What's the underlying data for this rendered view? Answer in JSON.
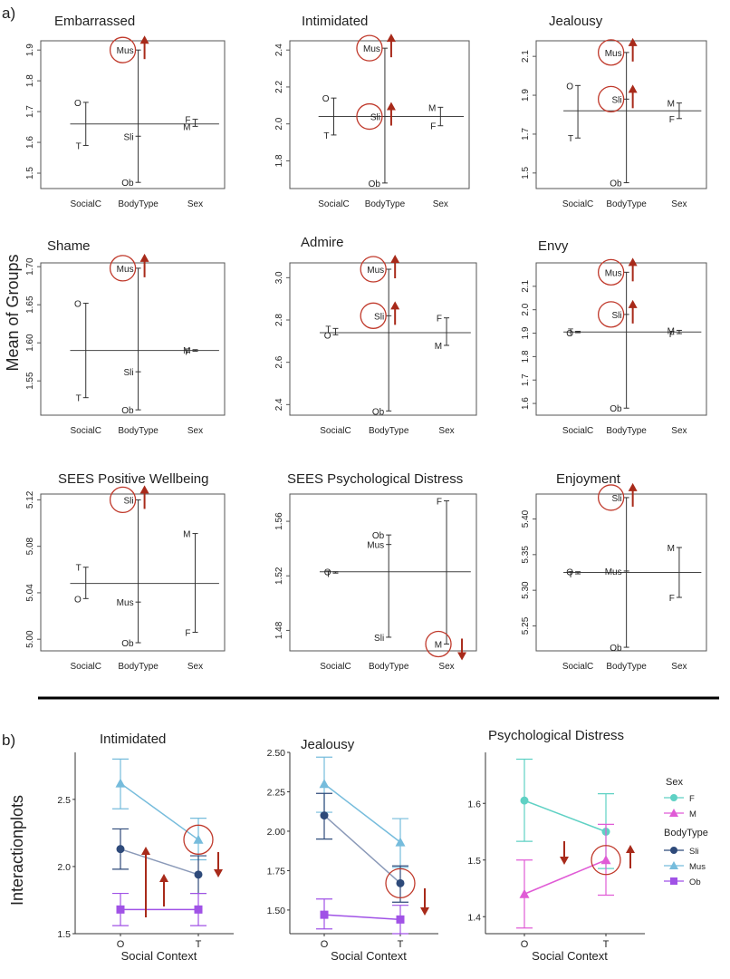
{
  "labels": {
    "part_a": "a)",
    "part_b": "b)",
    "y_label_a": "Mean of Groups",
    "y_label_b": "Interactionplots"
  },
  "colors": {
    "arrow": "#a82a1a",
    "circle": "#c0392b",
    "line": "#333333",
    "F": "#5fd1c4",
    "M": "#e05bd6",
    "Sli": "#2e4a7a",
    "Mus": "#76bcdc",
    "Ob": "#a052e6",
    "Sli_line": "#8a99b8"
  },
  "chart_data": [
    {
      "type": "design-means",
      "title": "Embarrassed",
      "ylim": [
        1.45,
        1.93
      ],
      "yticks": [
        1.5,
        1.6,
        1.7,
        1.8,
        1.9
      ],
      "ytick_labels": [
        "1.5",
        "1.6",
        "1.7",
        "1.8",
        "1.9"
      ],
      "grand_mean": 1.66,
      "xfactors": [
        "SocialC",
        "BodyType",
        "Sex"
      ],
      "groups": [
        {
          "factor": "SocialC",
          "levels": [
            {
              "label": "O",
              "value": 1.73
            },
            {
              "label": "T",
              "value": 1.59
            }
          ]
        },
        {
          "factor": "BodyType",
          "levels": [
            {
              "label": "Mus",
              "value": 1.9
            },
            {
              "label": "Sli",
              "value": 1.62
            },
            {
              "label": "Ob",
              "value": 1.47
            }
          ]
        },
        {
          "factor": "Sex",
          "levels": [
            {
              "label": "F",
              "value": 1.675
            },
            {
              "label": "M",
              "value": 1.652
            }
          ]
        }
      ],
      "highlights": [
        {
          "label": "Mus",
          "arrow": "up"
        }
      ]
    },
    {
      "type": "design-means",
      "title": "Intimidated",
      "ylim": [
        1.65,
        2.45
      ],
      "yticks": [
        1.8,
        2.0,
        2.2,
        2.4
      ],
      "ytick_labels": [
        "1.8",
        "2.0",
        "2.2",
        "2.4"
      ],
      "grand_mean": 2.04,
      "xfactors": [
        "SocialC",
        "BodyType",
        "Sex"
      ],
      "groups": [
        {
          "factor": "SocialC",
          "levels": [
            {
              "label": "O",
              "value": 2.14
            },
            {
              "label": "T",
              "value": 1.94
            }
          ]
        },
        {
          "factor": "BodyType",
          "levels": [
            {
              "label": "Mus",
              "value": 2.41
            },
            {
              "label": "Sli",
              "value": 2.04
            },
            {
              "label": "Ob",
              "value": 1.68
            }
          ]
        },
        {
          "factor": "Sex",
          "levels": [
            {
              "label": "M",
              "value": 2.09
            },
            {
              "label": "F",
              "value": 1.99
            }
          ]
        }
      ],
      "highlights": [
        {
          "label": "Mus",
          "arrow": "up"
        },
        {
          "label": "Sli",
          "arrow": "up"
        }
      ]
    },
    {
      "type": "design-means",
      "title": "Jealousy",
      "ylim": [
        1.42,
        2.18
      ],
      "yticks": [
        1.5,
        1.7,
        1.9,
        2.1
      ],
      "ytick_labels": [
        "1.5",
        "1.7",
        "1.9",
        "2.1"
      ],
      "grand_mean": 1.82,
      "xfactors": [
        "SocialC",
        "BodyType",
        "Sex"
      ],
      "groups": [
        {
          "factor": "SocialC",
          "levels": [
            {
              "label": "O",
              "value": 1.95
            },
            {
              "label": "T",
              "value": 1.68
            }
          ]
        },
        {
          "factor": "BodyType",
          "levels": [
            {
              "label": "Mus",
              "value": 2.12
            },
            {
              "label": "Sli",
              "value": 1.88
            },
            {
              "label": "Ob",
              "value": 1.45
            }
          ]
        },
        {
          "factor": "Sex",
          "levels": [
            {
              "label": "M",
              "value": 1.86
            },
            {
              "label": "F",
              "value": 1.78
            }
          ]
        }
      ],
      "highlights": [
        {
          "label": "Mus",
          "arrow": "up"
        },
        {
          "label": "Sli",
          "arrow": "up"
        }
      ]
    },
    {
      "type": "design-means",
      "title": "Shame",
      "ylim": [
        1.505,
        1.705
      ],
      "yticks": [
        1.55,
        1.6,
        1.65,
        1.7
      ],
      "ytick_labels": [
        "1.55",
        "1.60",
        "1.65",
        "1.70"
      ],
      "grand_mean": 1.59,
      "xfactors": [
        "SocialC",
        "BodyType",
        "Sex"
      ],
      "groups": [
        {
          "factor": "SocialC",
          "levels": [
            {
              "label": "O",
              "value": 1.652
            },
            {
              "label": "T",
              "value": 1.528
            }
          ]
        },
        {
          "factor": "BodyType",
          "levels": [
            {
              "label": "Mus",
              "value": 1.698
            },
            {
              "label": "Sli",
              "value": 1.562
            },
            {
              "label": "Ob",
              "value": 1.512
            }
          ]
        },
        {
          "factor": "Sex",
          "levels": [
            {
              "label": "M",
              "value": 1.591
            },
            {
              "label": "F",
              "value": 1.589
            }
          ]
        }
      ],
      "highlights": [
        {
          "label": "Mus",
          "arrow": "up"
        }
      ]
    },
    {
      "type": "design-means",
      "title": "Admire",
      "ylim": [
        2.35,
        3.07
      ],
      "yticks": [
        2.4,
        2.6,
        2.8,
        3.0
      ],
      "ytick_labels": [
        "2.4",
        "2.6",
        "2.8",
        "3.0"
      ],
      "grand_mean": 2.74,
      "xfactors": [
        "SocialC",
        "BodyType",
        "Sex"
      ],
      "groups": [
        {
          "factor": "SocialC",
          "levels": [
            {
              "label": "T",
              "value": 2.76
            },
            {
              "label": "O",
              "value": 2.73
            }
          ]
        },
        {
          "factor": "BodyType",
          "levels": [
            {
              "label": "Mus",
              "value": 3.04
            },
            {
              "label": "Sli",
              "value": 2.82
            },
            {
              "label": "Ob",
              "value": 2.37
            }
          ]
        },
        {
          "factor": "Sex",
          "levels": [
            {
              "label": "F",
              "value": 2.81
            },
            {
              "label": "M",
              "value": 2.68
            }
          ]
        }
      ],
      "highlights": [
        {
          "label": "Mus",
          "arrow": "up"
        },
        {
          "label": "Sli",
          "arrow": "up"
        }
      ]
    },
    {
      "type": "design-means",
      "title": "Envy",
      "ylim": [
        1.55,
        2.2
      ],
      "yticks": [
        1.6,
        1.7,
        1.8,
        1.9,
        2.0,
        2.1
      ],
      "ytick_labels": [
        "1.6",
        "1.7",
        "1.8",
        "1.9",
        "2.0",
        "2.1"
      ],
      "grand_mean": 1.905,
      "xfactors": [
        "SocialC",
        "BodyType",
        "Sex"
      ],
      "groups": [
        {
          "factor": "SocialC",
          "levels": [
            {
              "label": "T",
              "value": 1.908
            },
            {
              "label": "O",
              "value": 1.902
            }
          ]
        },
        {
          "factor": "BodyType",
          "levels": [
            {
              "label": "Mus",
              "value": 2.16
            },
            {
              "label": "Sli",
              "value": 1.98
            },
            {
              "label": "Ob",
              "value": 1.58
            }
          ]
        },
        {
          "factor": "Sex",
          "levels": [
            {
              "label": "M",
              "value": 1.912
            },
            {
              "label": "F",
              "value": 1.898
            }
          ]
        }
      ],
      "highlights": [
        {
          "label": "Mus",
          "arrow": "up"
        },
        {
          "label": "Sli",
          "arrow": "up"
        }
      ]
    },
    {
      "type": "design-means",
      "title": "SEES Positive Wellbeing",
      "ylim": [
        4.99,
        5.125
      ],
      "yticks": [
        5.0,
        5.04,
        5.08,
        5.12
      ],
      "ytick_labels": [
        "5.00",
        "5.04",
        "5.08",
        "5.12"
      ],
      "grand_mean": 5.048,
      "xfactors": [
        "SocialC",
        "BodyType",
        "Sex"
      ],
      "groups": [
        {
          "factor": "SocialC",
          "levels": [
            {
              "label": "T",
              "value": 5.062
            },
            {
              "label": "O",
              "value": 5.035
            }
          ]
        },
        {
          "factor": "BodyType",
          "levels": [
            {
              "label": "Sli",
              "value": 5.12
            },
            {
              "label": "Mus",
              "value": 5.032
            },
            {
              "label": "Ob",
              "value": 4.997
            }
          ]
        },
        {
          "factor": "Sex",
          "levels": [
            {
              "label": "M",
              "value": 5.091
            },
            {
              "label": "F",
              "value": 5.006
            }
          ]
        }
      ],
      "highlights": [
        {
          "label": "Sli",
          "arrow": "up"
        }
      ]
    },
    {
      "type": "design-means",
      "title": "SEES Psychological Distress",
      "ylim": [
        1.465,
        1.58
      ],
      "yticks": [
        1.48,
        1.52,
        1.56
      ],
      "ytick_labels": [
        "1.48",
        "1.52",
        "1.56"
      ],
      "grand_mean": 1.523,
      "xfactors": [
        "SocialC",
        "BodyType",
        "Sex"
      ],
      "groups": [
        {
          "factor": "SocialC",
          "levels": [
            {
              "label": "O",
              "value": 1.523
            },
            {
              "label": "T",
              "value": 1.522
            }
          ]
        },
        {
          "factor": "BodyType",
          "levels": [
            {
              "label": "Ob",
              "value": 1.55
            },
            {
              "label": "Mus",
              "value": 1.543
            },
            {
              "label": "Sli",
              "value": 1.475
            }
          ]
        },
        {
          "factor": "Sex",
          "levels": [
            {
              "label": "F",
              "value": 1.575
            },
            {
              "label": "M",
              "value": 1.47
            }
          ]
        }
      ],
      "highlights": [
        {
          "label": "M",
          "arrow": "down"
        }
      ]
    },
    {
      "type": "design-means",
      "title": "Enjoyment",
      "ylim": [
        5.215,
        5.435
      ],
      "yticks": [
        5.25,
        5.3,
        5.35,
        5.4
      ],
      "ytick_labels": [
        "5.25",
        "5.30",
        "5.35",
        "5.40"
      ],
      "grand_mean": 5.325,
      "xfactors": [
        "SocialC",
        "BodyType",
        "Sex"
      ],
      "groups": [
        {
          "factor": "SocialC",
          "levels": [
            {
              "label": "O",
              "value": 5.326
            },
            {
              "label": "T",
              "value": 5.323
            }
          ]
        },
        {
          "factor": "BodyType",
          "levels": [
            {
              "label": "Sli",
              "value": 5.43
            },
            {
              "label": "Mus",
              "value": 5.327
            },
            {
              "label": "Ob",
              "value": 5.22
            }
          ]
        },
        {
          "factor": "Sex",
          "levels": [
            {
              "label": "M",
              "value": 5.36
            },
            {
              "label": "F",
              "value": 5.29
            }
          ]
        }
      ],
      "highlights": [
        {
          "label": "Sli",
          "arrow": "up"
        }
      ]
    },
    {
      "type": "interaction-line",
      "title": "Intimidated",
      "xlabel": "Social Context",
      "categories": [
        "O",
        "T"
      ],
      "ylim": [
        1.5,
        2.85
      ],
      "yticks": [
        1.5,
        2.0,
        2.5
      ],
      "ytick_labels": [
        "1.5",
        "2.0",
        "2.5"
      ],
      "series": [
        {
          "name": "Mus",
          "marker": "triangle",
          "values": [
            2.62,
            2.2
          ],
          "err": [
            [
              2.43,
              2.8
            ],
            [
              2.05,
              2.36
            ]
          ]
        },
        {
          "name": "Sli",
          "marker": "circle",
          "values": [
            2.13,
            1.94
          ],
          "err": [
            [
              1.98,
              2.28
            ],
            [
              1.8,
              2.08
            ]
          ]
        },
        {
          "name": "Ob",
          "marker": "square",
          "values": [
            1.68,
            1.68
          ],
          "err": [
            [
              1.56,
              1.8
            ],
            [
              1.56,
              1.8
            ]
          ]
        }
      ],
      "annotations": {
        "circle": {
          "series": "Mus",
          "index": 1
        },
        "arrows": [
          "up-large",
          "up-small",
          "down-right"
        ]
      }
    },
    {
      "type": "interaction-line",
      "title": "Jealousy",
      "xlabel": "Social Context",
      "categories": [
        "O",
        "T"
      ],
      "ylim": [
        1.35,
        2.5
      ],
      "yticks": [
        1.5,
        1.75,
        2.0,
        2.25,
        2.5
      ],
      "ytick_labels": [
        "1.50",
        "1.75",
        "2.00",
        "2.25",
        "2.50"
      ],
      "series": [
        {
          "name": "Mus",
          "marker": "triangle",
          "values": [
            2.3,
            1.93
          ],
          "err": [
            [
              2.12,
              2.47
            ],
            [
              1.77,
              2.08
            ]
          ]
        },
        {
          "name": "Sli",
          "marker": "circle",
          "values": [
            2.1,
            1.67
          ],
          "err": [
            [
              1.95,
              2.24
            ],
            [
              1.55,
              1.78
            ]
          ]
        },
        {
          "name": "Ob",
          "marker": "square",
          "values": [
            1.47,
            1.44
          ],
          "err": [
            [
              1.38,
              1.57
            ],
            [
              1.35,
              1.53
            ]
          ]
        }
      ],
      "annotations": {
        "circle": {
          "series": "Sli",
          "index": 1
        },
        "arrows": [
          "down-right"
        ]
      }
    },
    {
      "type": "interaction-line",
      "title": "Psychological Distress",
      "xlabel": "Social Context",
      "categories": [
        "O",
        "T"
      ],
      "ylim": [
        1.37,
        1.69
      ],
      "yticks": [
        1.4,
        1.5,
        1.6
      ],
      "ytick_labels": [
        "1.4",
        "1.5",
        "1.6"
      ],
      "series": [
        {
          "name": "F",
          "marker": "circle",
          "values": [
            1.605,
            1.55
          ],
          "err": [
            [
              1.533,
              1.678
            ],
            [
              1.485,
              1.617
            ]
          ]
        },
        {
          "name": "M",
          "marker": "triangle",
          "values": [
            1.44,
            1.5
          ],
          "err": [
            [
              1.38,
              1.5
            ],
            [
              1.438,
              1.563
            ]
          ]
        }
      ],
      "annotations": {
        "circle": {
          "series": "M",
          "index": 1
        },
        "arrows": [
          "down-left",
          "up-right"
        ]
      }
    }
  ],
  "legend": {
    "sex_title": "Sex",
    "sex_items": [
      {
        "name": "F",
        "marker": "circle"
      },
      {
        "name": "M",
        "marker": "triangle"
      }
    ],
    "bodytype_title": "BodyType",
    "bodytype_items": [
      {
        "name": "Sli",
        "marker": "circle"
      },
      {
        "name": "Mus",
        "marker": "triangle"
      },
      {
        "name": "Ob",
        "marker": "square"
      }
    ]
  }
}
